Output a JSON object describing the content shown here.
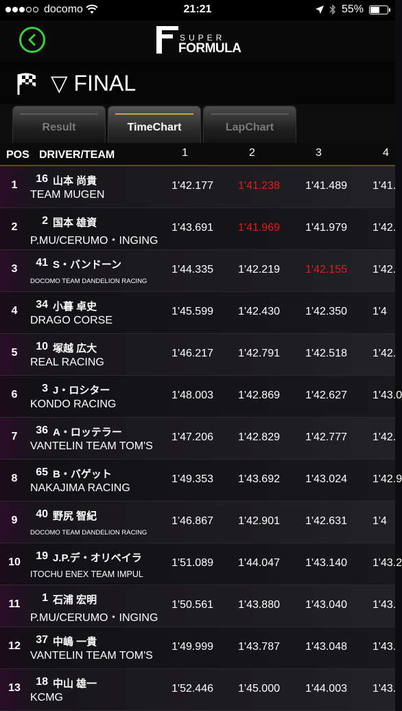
{
  "status_bar": {
    "carrier": "docomo",
    "time": "21:21",
    "battery": "55%",
    "battery_level": 0.55
  },
  "logo": {
    "super": "SUPER",
    "formula": "FORMULA"
  },
  "session": {
    "title": "▽ FINAL"
  },
  "tabs": [
    {
      "label": "Result",
      "active": false
    },
    {
      "label": "TimeChart",
      "active": true
    },
    {
      "label": "LapChart",
      "active": false
    }
  ],
  "columns": {
    "pos": "POS",
    "driver_team": "DRIVER/TEAM",
    "laps": [
      "1",
      "2",
      "3",
      "4"
    ]
  },
  "rows": [
    {
      "pos": "1",
      "num": "16",
      "driver": "山本 尚貴",
      "team": "TEAM MUGEN",
      "laps": [
        "1'42.177",
        "1'41.238",
        "1'41.489",
        "1'41."
      ],
      "best": 1
    },
    {
      "pos": "2",
      "num": "2",
      "driver": "国本 雄資",
      "team": "P.MU/CERUMO・INGING",
      "laps": [
        "1'43.691",
        "1'41.969",
        "1'41.979",
        "1'42."
      ],
      "best": 1
    },
    {
      "pos": "3",
      "num": "41",
      "driver": "S・バンドーン",
      "team": "DOCOMO TEAM DANDELION RACING",
      "laps": [
        "1'44.335",
        "1'42.219",
        "1'42.155",
        "1'42."
      ],
      "best": 2
    },
    {
      "pos": "4",
      "num": "34",
      "driver": "小暮 卓史",
      "team": "DRAGO CORSE",
      "laps": [
        "1'45.599",
        "1'42.430",
        "1'42.350",
        "1'4"
      ],
      "best": -1
    },
    {
      "pos": "5",
      "num": "10",
      "driver": "塚越 広大",
      "team": "REAL RACING",
      "laps": [
        "1'46.217",
        "1'42.791",
        "1'42.518",
        "1'42."
      ],
      "best": -1
    },
    {
      "pos": "6",
      "num": "3",
      "driver": "J・ロシター",
      "team": "KONDO RACING",
      "laps": [
        "1'48.003",
        "1'42.869",
        "1'42.627",
        "1'43.0"
      ],
      "best": -1
    },
    {
      "pos": "7",
      "num": "36",
      "driver": "A・ロッテラー",
      "team": "VANTELIN TEAM TOM'S",
      "laps": [
        "1'47.206",
        "1'42.829",
        "1'42.777",
        "1'42."
      ],
      "best": -1
    },
    {
      "pos": "8",
      "num": "65",
      "driver": "B・バゲット",
      "team": "NAKAJIMA RACING",
      "laps": [
        "1'49.353",
        "1'43.692",
        "1'43.024",
        "1'42.9"
      ],
      "best": -1
    },
    {
      "pos": "9",
      "num": "40",
      "driver": "野尻 智紀",
      "team": "DOCOMO TEAM DANDELION RACING",
      "laps": [
        "1'46.867",
        "1'42.901",
        "1'42.631",
        "1'4"
      ],
      "best": -1
    },
    {
      "pos": "10",
      "num": "19",
      "driver": "J.P.デ・オリベイラ",
      "team": "ITOCHU ENEX TEAM IMPUL",
      "laps": [
        "1'51.089",
        "1'44.047",
        "1'43.140",
        "1'43.2"
      ],
      "best": -1
    },
    {
      "pos": "11",
      "num": "1",
      "driver": "石浦 宏明",
      "team": "P.MU/CERUMO・INGING",
      "laps": [
        "1'50.561",
        "1'43.880",
        "1'43.040",
        "1'43."
      ],
      "best": -1
    },
    {
      "pos": "12",
      "num": "37",
      "driver": "中嶋 一貴",
      "team": "VANTELIN TEAM TOM'S",
      "laps": [
        "1'49.999",
        "1'43.787",
        "1'43.048",
        "1'43."
      ],
      "best": -1
    },
    {
      "pos": "13",
      "num": "18",
      "driver": "中山 雄一",
      "team": "KCMG",
      "laps": [
        "1'52.446",
        "1'45.000",
        "1'44.003",
        "1'43."
      ],
      "best": -1
    }
  ]
}
